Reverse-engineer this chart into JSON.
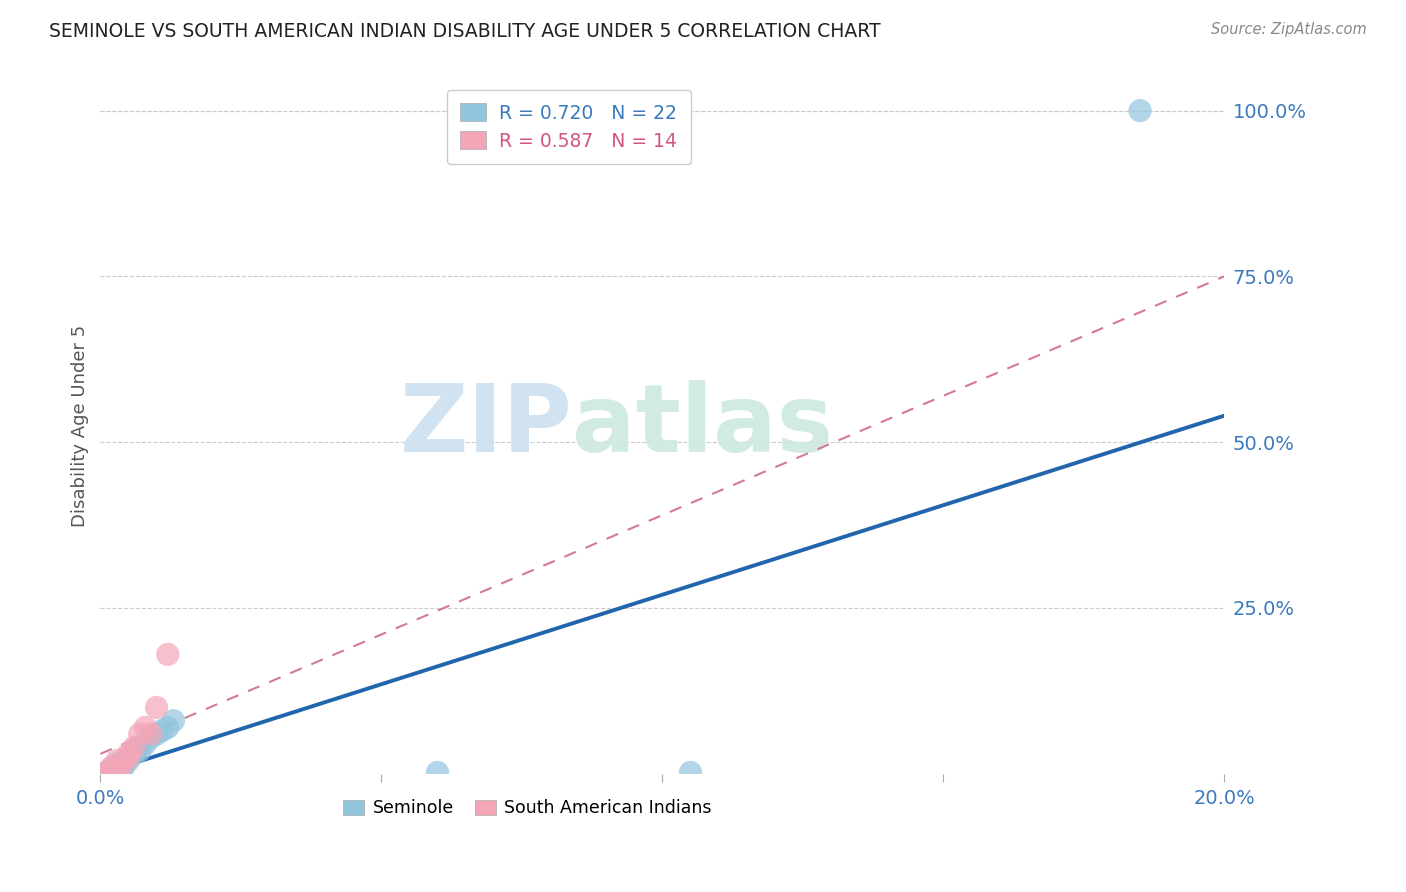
{
  "title": "SEMINOLE VS SOUTH AMERICAN INDIAN DISABILITY AGE UNDER 5 CORRELATION CHART",
  "source": "Source: ZipAtlas.com",
  "ylabel": "Disability Age Under 5",
  "xmin": 0.0,
  "xmax": 0.2,
  "ymin": 0.0,
  "ymax": 1.05,
  "x_ticks": [
    0.0,
    0.05,
    0.1,
    0.15,
    0.2
  ],
  "x_tick_labels": [
    "0.0%",
    "",
    "",
    "",
    "20.0%"
  ],
  "y_tick_vals_right": [
    0.25,
    0.5,
    0.75,
    1.0
  ],
  "y_tick_labels_right": [
    "25.0%",
    "50.0%",
    "75.0%",
    "100.0%"
  ],
  "seminole_R": 0.72,
  "seminole_N": 22,
  "sa_indian_R": 0.587,
  "sa_indian_N": 14,
  "seminole_color": "#92c5de",
  "sa_indian_color": "#f4a6b8",
  "seminole_line_color": "#2166ac",
  "sa_indian_line_color": "#d4799a",
  "watermark_zip": "ZIP",
  "watermark_atlas": "atlas",
  "seminole_x": [
    0.001,
    0.002,
    0.002,
    0.003,
    0.003,
    0.004,
    0.004,
    0.004,
    0.005,
    0.005,
    0.006,
    0.007,
    0.007,
    0.008,
    0.009,
    0.01,
    0.011,
    0.012,
    0.013,
    0.06,
    0.105,
    0.185
  ],
  "seminole_y": [
    0.002,
    0.004,
    0.008,
    0.005,
    0.015,
    0.008,
    0.012,
    0.018,
    0.02,
    0.025,
    0.03,
    0.035,
    0.04,
    0.045,
    0.055,
    0.06,
    0.065,
    0.07,
    0.08,
    0.002,
    0.002,
    1.0
  ],
  "sa_indian_x": [
    0.001,
    0.002,
    0.002,
    0.003,
    0.003,
    0.004,
    0.005,
    0.005,
    0.006,
    0.007,
    0.008,
    0.009,
    0.01,
    0.012
  ],
  "sa_indian_y": [
    0.002,
    0.005,
    0.01,
    0.008,
    0.02,
    0.015,
    0.025,
    0.03,
    0.04,
    0.06,
    0.07,
    0.06,
    0.1,
    0.18
  ],
  "seminole_line_x0": 0.0,
  "seminole_line_y0": 0.0,
  "seminole_line_x1": 0.2,
  "seminole_line_y1": 0.54,
  "sa_indian_line_x0": 0.0,
  "sa_indian_line_y0": 0.03,
  "sa_indian_line_x1": 0.2,
  "sa_indian_line_y1": 0.75
}
